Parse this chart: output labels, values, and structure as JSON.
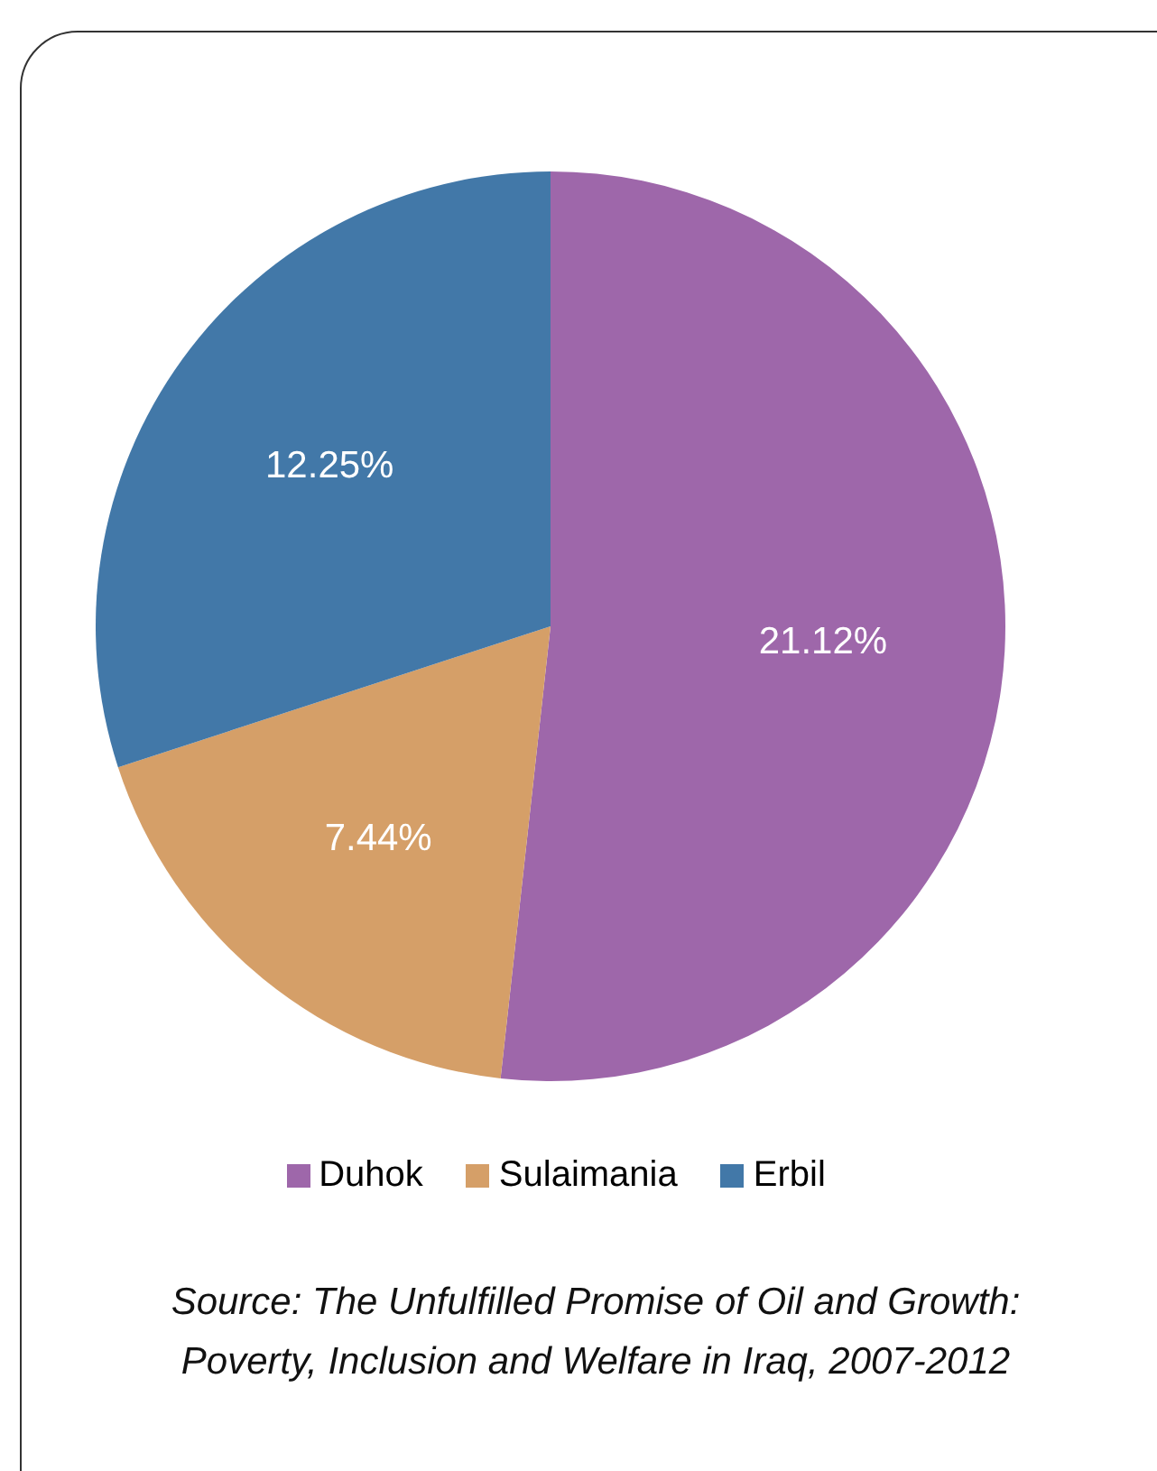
{
  "chart_data": {
    "type": "pie",
    "categories": [
      "Duhok",
      "Sulaimania",
      "Erbil"
    ],
    "values": [
      21.12,
      7.44,
      12.25
    ],
    "colors": [
      "#9e67aa",
      "#d59f68",
      "#4278a8"
    ],
    "value_labels": [
      "21.12%",
      "7.44%",
      "12.25%"
    ],
    "legend": "bottom",
    "annotations": [
      "Source: The Unfulfilled Promise of Oil and Growth: Poverty, Inclusion and Welfare in Iraq, 2007-2012"
    ]
  }
}
